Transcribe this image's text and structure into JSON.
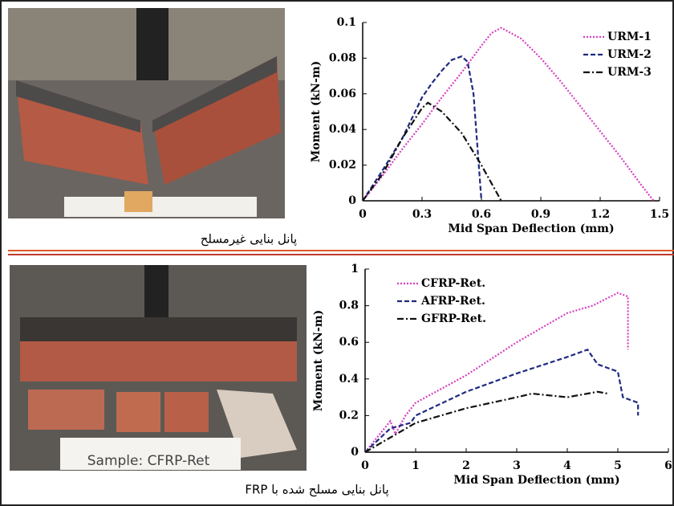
{
  "chart_data": [
    {
      "type": "line",
      "caption": "پانل بنایی غیرمسلح",
      "xlabel": "Mid Span Deflection (mm)",
      "ylabel": "Moment (kN-m)",
      "xlim": [
        0,
        1.5
      ],
      "xticks": [
        0,
        0.3,
        0.6,
        0.9,
        1.2,
        1.5
      ],
      "ylim": [
        0,
        0.1
      ],
      "yticks": [
        0,
        0.02,
        0.04,
        0.06,
        0.08,
        0.1
      ],
      "legend": "upper right",
      "series": [
        {
          "name": "URM-1",
          "color": "#d63fc0",
          "dash": "dotted",
          "x": [
            0,
            0.1,
            0.2,
            0.3,
            0.4,
            0.5,
            0.6,
            0.65,
            0.7,
            0.8,
            0.9,
            1.0,
            1.1,
            1.2,
            1.3,
            1.4,
            1.47
          ],
          "values": [
            0,
            0.014,
            0.029,
            0.043,
            0.058,
            0.072,
            0.087,
            0.094,
            0.097,
            0.091,
            0.08,
            0.067,
            0.053,
            0.039,
            0.025,
            0.01,
            0
          ]
        },
        {
          "name": "URM-2",
          "color": "#1f2a80",
          "dash": "dashed",
          "x": [
            0,
            0.1,
            0.2,
            0.3,
            0.35,
            0.4,
            0.45,
            0.5,
            0.53,
            0.56,
            0.58,
            0.6
          ],
          "values": [
            0,
            0.017,
            0.035,
            0.058,
            0.066,
            0.073,
            0.079,
            0.081,
            0.078,
            0.06,
            0.03,
            0
          ]
        },
        {
          "name": "URM-3",
          "color": "#111111",
          "dash": "dashdot",
          "x": [
            0,
            0.1,
            0.2,
            0.3,
            0.33,
            0.4,
            0.5,
            0.6,
            0.65,
            0.7
          ],
          "values": [
            0,
            0.015,
            0.035,
            0.052,
            0.055,
            0.05,
            0.038,
            0.02,
            0.01,
            0
          ]
        }
      ]
    },
    {
      "type": "line",
      "caption": "پانل بنایی مسلح شده با FRP",
      "photo_label": "Sample: CFRP-Ret",
      "xlabel": "Mid Span Deflection (mm)",
      "ylabel": "Moment (kN-m)",
      "xlim": [
        0,
        6
      ],
      "xticks": [
        0,
        1,
        2,
        3,
        4,
        5,
        6
      ],
      "ylim": [
        0,
        1
      ],
      "yticks": [
        0,
        0.2,
        0.4,
        0.6,
        0.8,
        1
      ],
      "legend": "upper left",
      "series": [
        {
          "name": "CFRP-Ret.",
          "color": "#d63fc0",
          "dash": "dotted",
          "x": [
            0,
            0.5,
            0.6,
            0.8,
            1,
            2,
            3,
            4,
            4.5,
            5,
            5.2,
            5.2
          ],
          "values": [
            0,
            0.17,
            0.1,
            0.2,
            0.27,
            0.42,
            0.6,
            0.76,
            0.8,
            0.87,
            0.85,
            0.56
          ]
        },
        {
          "name": "AFRP-Ret.",
          "color": "#1f2a80",
          "dash": "dashed",
          "x": [
            0,
            0.5,
            0.9,
            1,
            2,
            3,
            4,
            4.4,
            4.6,
            5,
            5.1,
            5.4,
            5.4
          ],
          "values": [
            0,
            0.13,
            0.16,
            0.2,
            0.33,
            0.43,
            0.52,
            0.56,
            0.48,
            0.44,
            0.3,
            0.27,
            0.2
          ]
        },
        {
          "name": "GFRP-Ret.",
          "color": "#111111",
          "dash": "dashdot",
          "x": [
            0,
            0.5,
            1,
            2,
            3,
            3.3,
            4,
            4.6,
            4.8
          ],
          "values": [
            0,
            0.08,
            0.16,
            0.24,
            0.3,
            0.32,
            0.3,
            0.33,
            0.32
          ]
        }
      ]
    }
  ]
}
